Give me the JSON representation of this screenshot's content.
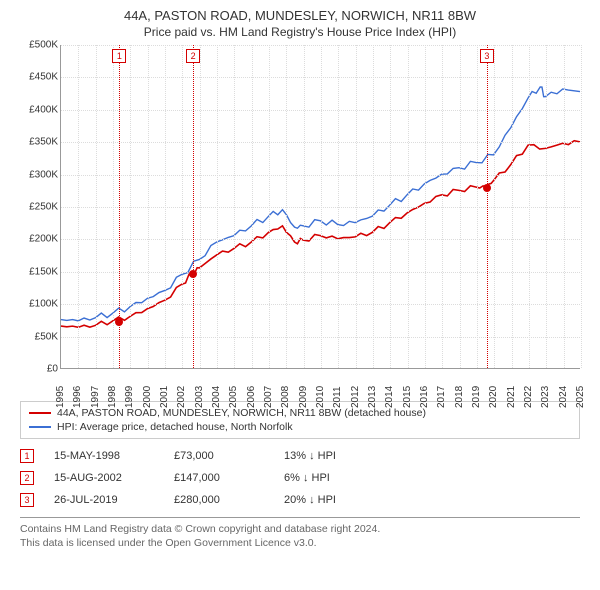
{
  "title": "44A, PASTON ROAD, MUNDESLEY, NORWICH, NR11 8BW",
  "subtitle": "Price paid vs. HM Land Registry's House Price Index (HPI)",
  "chart": {
    "type": "line",
    "background_color": "#ffffff",
    "grid_color": "#dcdcdc",
    "axis_color": "#999999",
    "ylim": [
      0,
      500000
    ],
    "ytick_step": 50000,
    "y_tick_labels": [
      "£0",
      "£50K",
      "£100K",
      "£150K",
      "£200K",
      "£250K",
      "£300K",
      "£350K",
      "£400K",
      "£450K",
      "£500K"
    ],
    "x_years": [
      1995,
      1996,
      1997,
      1998,
      1999,
      2000,
      2001,
      2002,
      2003,
      2004,
      2005,
      2006,
      2007,
      2008,
      2009,
      2010,
      2011,
      2012,
      2013,
      2014,
      2015,
      2016,
      2017,
      2018,
      2019,
      2020,
      2021,
      2022,
      2023,
      2024,
      2025
    ],
    "series": [
      {
        "name": "price_paid",
        "color": "#d40000",
        "line_width": 1.6,
        "data": [
          [
            1995,
            65000
          ],
          [
            1996,
            63000
          ],
          [
            1997,
            66000
          ],
          [
            1998,
            73000
          ],
          [
            1999,
            80000
          ],
          [
            2000,
            92000
          ],
          [
            2001,
            105000
          ],
          [
            2002,
            130000
          ],
          [
            2002.6,
            147000
          ],
          [
            2003,
            155000
          ],
          [
            2004,
            175000
          ],
          [
            2005,
            185000
          ],
          [
            2006,
            195000
          ],
          [
            2007,
            210000
          ],
          [
            2007.8,
            220000
          ],
          [
            2008.5,
            195000
          ],
          [
            2009,
            198000
          ],
          [
            2010,
            205000
          ],
          [
            2011,
            200000
          ],
          [
            2012,
            203000
          ],
          [
            2013,
            210000
          ],
          [
            2014,
            225000
          ],
          [
            2015,
            240000
          ],
          [
            2016,
            255000
          ],
          [
            2017,
            268000
          ],
          [
            2018,
            275000
          ],
          [
            2019,
            280000
          ],
          [
            2019.6,
            280000
          ],
          [
            2020,
            290000
          ],
          [
            2021,
            315000
          ],
          [
            2022,
            345000
          ],
          [
            2023,
            340000
          ],
          [
            2024,
            348000
          ],
          [
            2025,
            350000
          ]
        ]
      },
      {
        "name": "hpi",
        "color": "#3b6fd4",
        "line_width": 1.4,
        "data": [
          [
            1995,
            75000
          ],
          [
            1996,
            73000
          ],
          [
            1997,
            78000
          ],
          [
            1998,
            85000
          ],
          [
            1999,
            95000
          ],
          [
            2000,
            108000
          ],
          [
            2001,
            120000
          ],
          [
            2002,
            145000
          ],
          [
            2003,
            168000
          ],
          [
            2004,
            195000
          ],
          [
            2005,
            205000
          ],
          [
            2006,
            220000
          ],
          [
            2007,
            235000
          ],
          [
            2007.8,
            245000
          ],
          [
            2008.5,
            218000
          ],
          [
            2009,
            220000
          ],
          [
            2010,
            228000
          ],
          [
            2011,
            222000
          ],
          [
            2012,
            225000
          ],
          [
            2013,
            235000
          ],
          [
            2014,
            252000
          ],
          [
            2015,
            268000
          ],
          [
            2016,
            285000
          ],
          [
            2017,
            300000
          ],
          [
            2018,
            310000
          ],
          [
            2019,
            318000
          ],
          [
            2020,
            330000
          ],
          [
            2021,
            372000
          ],
          [
            2022,
            418000
          ],
          [
            2022.7,
            435000
          ],
          [
            2023,
            420000
          ],
          [
            2024,
            432000
          ],
          [
            2025,
            428000
          ]
        ]
      }
    ],
    "sale_markers": [
      {
        "n": "1",
        "year": 1998.37,
        "price": 73000,
        "color": "#d40000"
      },
      {
        "n": "2",
        "year": 2002.62,
        "price": 147000,
        "color": "#d40000"
      },
      {
        "n": "3",
        "year": 2019.57,
        "price": 280000,
        "color": "#d40000"
      }
    ]
  },
  "legend": {
    "items": [
      {
        "color": "#d40000",
        "label": "44A, PASTON ROAD, MUNDESLEY, NORWICH, NR11 8BW (detached house)"
      },
      {
        "color": "#3b6fd4",
        "label": "HPI: Average price, detached house, North Norfolk"
      }
    ]
  },
  "marker_table": [
    {
      "n": "1",
      "color": "#d40000",
      "date": "15-MAY-1998",
      "price": "£73,000",
      "delta": "13% ↓ HPI"
    },
    {
      "n": "2",
      "color": "#d40000",
      "date": "15-AUG-2002",
      "price": "£147,000",
      "delta": "6% ↓ HPI"
    },
    {
      "n": "3",
      "color": "#d40000",
      "date": "26-JUL-2019",
      "price": "£280,000",
      "delta": "20% ↓ HPI"
    }
  ],
  "footnote": {
    "line1": "Contains HM Land Registry data © Crown copyright and database right 2024.",
    "line2": "This data is licensed under the Open Government Licence v3.0."
  }
}
